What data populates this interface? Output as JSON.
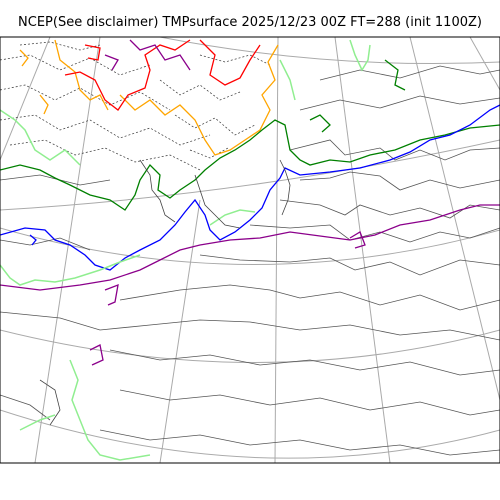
{
  "title": "NCEP(See disclaimer) TMPsurface 2025/12/23 00Z FT=288 (init 1100Z)",
  "colors": {
    "background": "#ffffff",
    "frame": "#000000",
    "graticule": "#aaaaaa",
    "coastline": "#444444",
    "minor_isotherm": "#555555",
    "contour_red": "#ff0000",
    "contour_orange": "#ffa500",
    "contour_purple": "#8b008b",
    "contour_blue": "#0000ff",
    "contour_dark_green": "#008000",
    "contour_light_green": "#90ee90",
    "contour_dotted": "#333333"
  },
  "map": {
    "projection": "polar-stereographic",
    "graticule": true,
    "coastlines": true
  }
}
